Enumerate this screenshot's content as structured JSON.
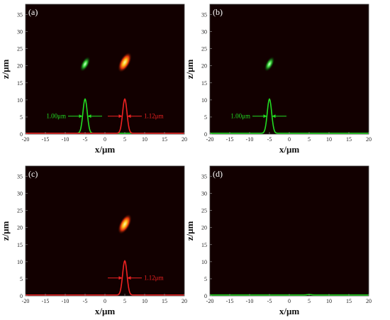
{
  "figure": {
    "xlabel": "x/μm",
    "ylabel": "z/μm",
    "x_ticks": [
      "-20",
      "-15",
      "-10",
      "-5",
      "0",
      "5",
      "10",
      "15",
      "20"
    ],
    "y_ticks": [
      "0",
      "5",
      "10",
      "15",
      "20",
      "25",
      "30",
      "35"
    ]
  },
  "chart_data": [
    {
      "type": "heatmap",
      "panel_label": "(a)",
      "xlabel": "x/μm",
      "ylabel": "z/μm",
      "xlim": [
        -20,
        20
      ],
      "ylim": [
        0,
        38
      ],
      "background_color": "#120000",
      "spots": [
        {
          "x": -5.0,
          "z": 20.5,
          "color": "green"
        },
        {
          "x": 5.0,
          "z": 21.0,
          "color": "red-yellow"
        }
      ],
      "profiles": [
        {
          "color": "#22dd22",
          "center": -5.0,
          "peak": 10.0,
          "width_label": "1.00μm"
        },
        {
          "color": "#ee2222",
          "center": 5.0,
          "peak": 10.0,
          "width_label": "1.12μm"
        }
      ],
      "annotations": [
        "1.00μm",
        "1.12μm"
      ]
    },
    {
      "type": "heatmap",
      "panel_label": "(b)",
      "xlabel": "x/μm",
      "ylabel": "z/μm",
      "xlim": [
        -20,
        20
      ],
      "ylim": [
        0,
        38
      ],
      "background_color": "#120000",
      "spots": [
        {
          "x": -5.0,
          "z": 20.5,
          "color": "green"
        }
      ],
      "profiles": [
        {
          "color": "#22dd22",
          "center": -5.0,
          "peak": 10.0,
          "width_label": "1.00μm"
        }
      ],
      "annotations": [
        "1.00μm"
      ]
    },
    {
      "type": "heatmap",
      "panel_label": "(c)",
      "xlabel": "x/μm",
      "ylabel": "z/μm",
      "xlim": [
        -20,
        20
      ],
      "ylim": [
        0,
        38
      ],
      "background_color": "#120000",
      "spots": [
        {
          "x": 5.0,
          "z": 21.0,
          "color": "red-yellow"
        }
      ],
      "profiles": [
        {
          "color": "#ee2222",
          "center": 5.0,
          "peak": 10.0,
          "width_label": "1.12μm"
        }
      ],
      "annotations": [
        "1.12μm"
      ]
    },
    {
      "type": "heatmap",
      "panel_label": "(d)",
      "xlabel": "x/μm",
      "ylabel": "z/μm",
      "xlim": [
        -20,
        20
      ],
      "ylim": [
        0,
        38
      ],
      "background_color": "#120000",
      "spots": [],
      "profiles": [
        {
          "color": "#22dd22",
          "center": 5.0,
          "peak": 0.15,
          "width_label": ""
        }
      ],
      "annotations": []
    }
  ]
}
